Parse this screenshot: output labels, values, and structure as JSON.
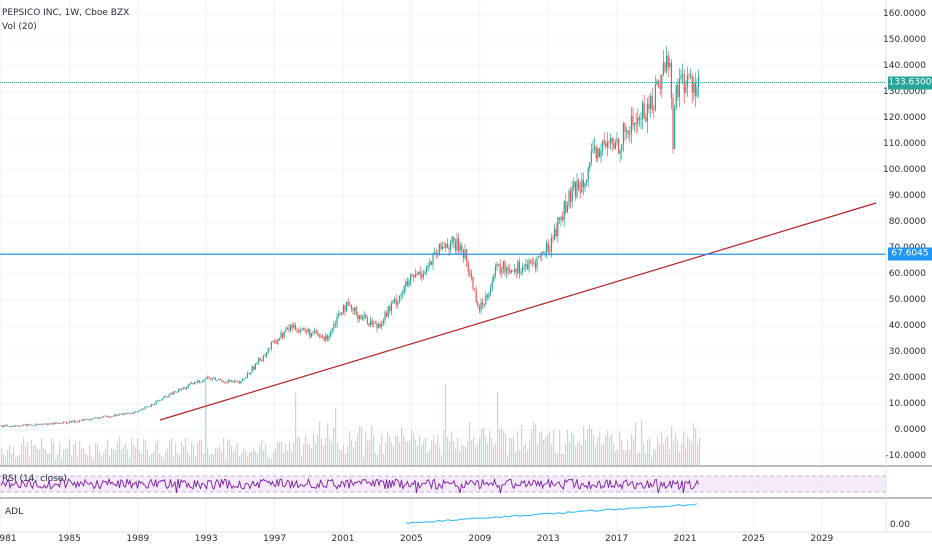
{
  "legend": {
    "title": "PEPSICO INC, 1W, Cboe BZX",
    "volume": "Vol (20)",
    "rsi": "RSI (14, close)",
    "adl": "ADL"
  },
  "price_axis": {
    "ticks": [
      "160.0000",
      "150.0000",
      "140.0000",
      "130.0000",
      "120.0000",
      "110.0000",
      "100.0000",
      "90.0000",
      "80.0000",
      "70.0000",
      "60.0000",
      "50.0000",
      "40.0000",
      "30.0000",
      "20.0000",
      "10.0000",
      "0.0000",
      "-10.0000"
    ],
    "tag_current": "133.6300",
    "tag_level": "67.6045"
  },
  "adl_axis": {
    "tick": "0.00"
  },
  "time_axis": {
    "labels": [
      "981",
      "1985",
      "1989",
      "1993",
      "1997",
      "2001",
      "2005",
      "2009",
      "2013",
      "2017",
      "2021",
      "2025",
      "2029"
    ]
  },
  "colors": {
    "up": "#26a69a",
    "down": "#ef5350",
    "current_line": "#26a69a",
    "level_line": "#2196f3",
    "trend_line": "#b22222",
    "rsi_line": "#7b1fa2",
    "rsi_band": "#f3e5f5",
    "adl_line": "#29b6f6"
  },
  "chart_data": {
    "type": "candlestick",
    "price_series": {
      "x": [
        1981,
        1983,
        1985,
        1987,
        1989,
        1991,
        1993,
        1995,
        1997,
        1998,
        2000,
        2001,
        2003,
        2005,
        2006,
        2007,
        2008,
        2009,
        2010,
        2012,
        2013,
        2014,
        2015,
        2016,
        2017,
        2018,
        2019,
        2019.8,
        2020.1,
        2020.3,
        2020.5
      ],
      "y": [
        1.5,
        2,
        3,
        5,
        7,
        14,
        20,
        18,
        34,
        40,
        35,
        48,
        40,
        58,
        63,
        72,
        70,
        46,
        62,
        63,
        70,
        86,
        97,
        108,
        110,
        118,
        125,
        140,
        144,
        110,
        133.63
      ]
    },
    "horizontal_lines": [
      133.63,
      67.6045
    ],
    "trend_line": {
      "x": [
        1990,
        2030
      ],
      "y": [
        4.5,
        87
      ]
    },
    "ylim": [
      -14,
      164
    ],
    "xlim": [
      1981,
      2031
    ]
  }
}
